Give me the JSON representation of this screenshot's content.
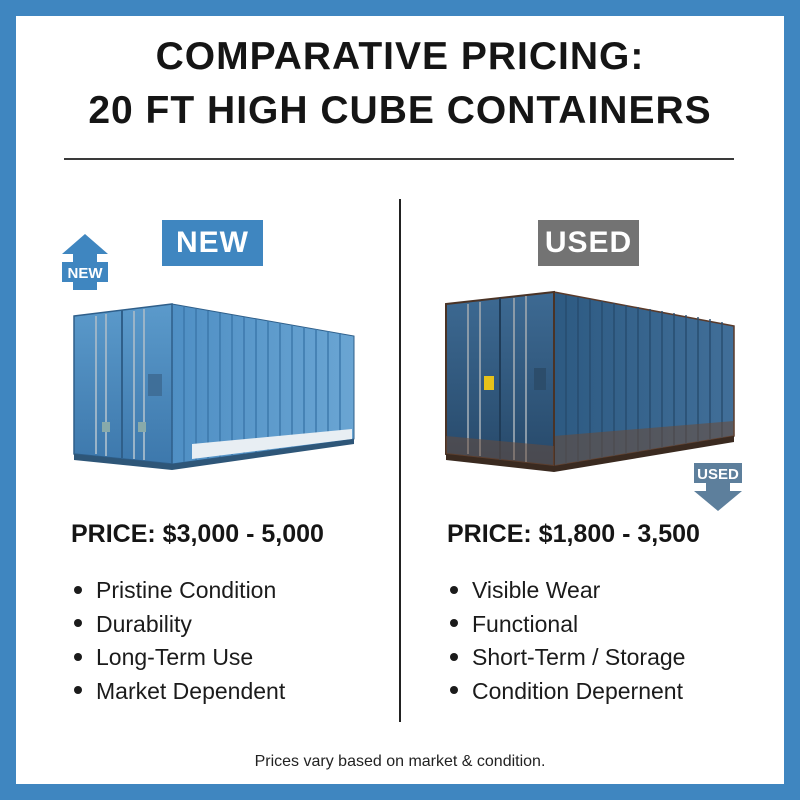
{
  "title": {
    "line1": "COMPARATIVE PRICING:",
    "line2": "20 FT HIGH CUBE CONTAINERS"
  },
  "new_section": {
    "badge": "NEW",
    "arrow_label": "NEW",
    "price": "PRICE: $3,000 - 5,000",
    "features": [
      "Pristine Condition",
      "Durability",
      "Long-Term Use",
      "Market Dependent"
    ]
  },
  "used_section": {
    "badge": "USED",
    "arrow_label": "USED",
    "price": "PRICE: $1,800 - 3,500",
    "features": [
      "Visible Wear",
      "Functional",
      "Short-Term / Storage",
      "Condition Depernent"
    ]
  },
  "footer": "Prices vary based on market & condition.",
  "colors": {
    "border_blue": "#3f86c0",
    "new_badge": "#3f86c0",
    "used_badge": "#737373"
  },
  "icons": [
    "up-arrow-icon",
    "down-arrow-icon"
  ]
}
